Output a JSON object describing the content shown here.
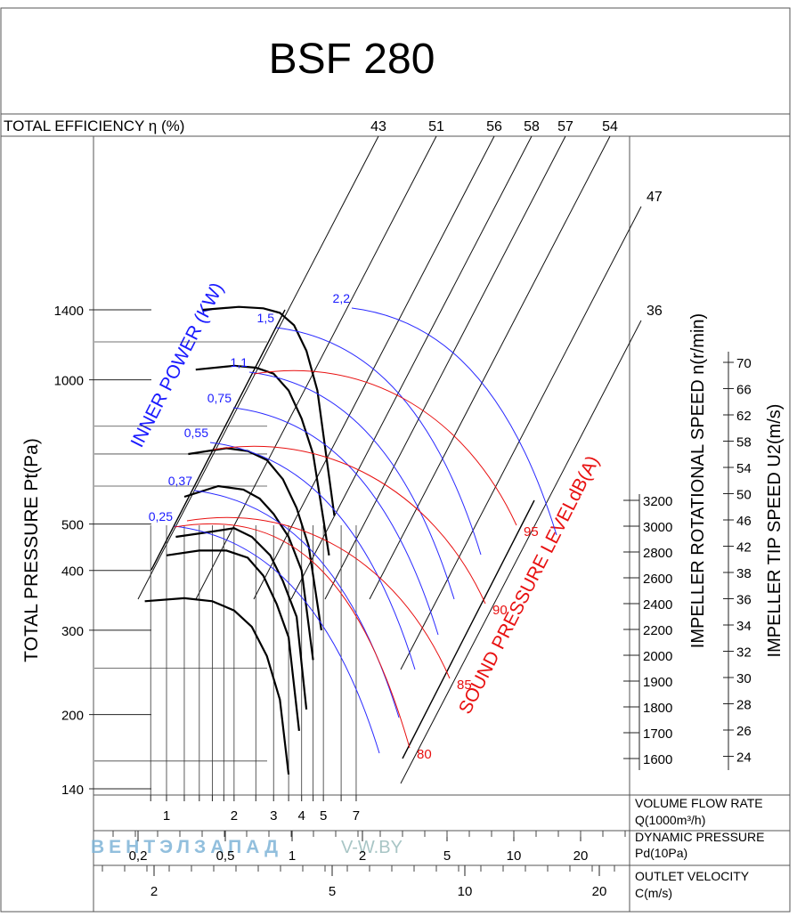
{
  "chart_data": {
    "type": "line",
    "title": "BSF 280",
    "efficiency_label": "TOTAL EFFICIENCY η (%)",
    "efficiency_values": [
      "43",
      "51",
      "56",
      "58",
      "57",
      "54",
      "47",
      "36"
    ],
    "ylabel": "TOTAL PRESSURE Pt(Pa)",
    "y_ticks": [
      "1400",
      "1000",
      "500",
      "400",
      "300",
      "200",
      "140"
    ],
    "inner_power_label": "INNER POWER (KW)",
    "inner_power_values": [
      "2,2",
      "1,5",
      "1,1",
      "0,75",
      "0,55",
      "0,37",
      "0,25"
    ],
    "sound_label": "SOUND PRESSURE LEVELdB(A)",
    "sound_values": [
      "95",
      "90",
      "85",
      "80"
    ],
    "speed_label": "IMPELLER ROTATIONAL SPEED n(r/min)",
    "speed_ticks": [
      "3200",
      "3000",
      "2800",
      "2600",
      "2400",
      "2200",
      "2000",
      "1900",
      "1800",
      "1700",
      "1600"
    ],
    "tip_label": "IMPELLER TIP SPEED U2(m/s)",
    "tip_ticks": [
      "70",
      "66",
      "62",
      "58",
      "54",
      "50",
      "46",
      "42",
      "38",
      "36",
      "34",
      "32",
      "30",
      "28",
      "26",
      "24"
    ],
    "flow_label": "VOLUME FLOW RATE",
    "flow_unit": "Q(1000m³/h)",
    "flow_ticks": [
      "1",
      "2",
      "3",
      "4",
      "5",
      "7"
    ],
    "dyn_label": "DYNAMIC PRESSURE",
    "dyn_unit": "Pd(10Pa)",
    "dyn_ticks": [
      "0,2",
      "0,5",
      "1",
      "2",
      "5",
      "10",
      "20"
    ],
    "vel_label": "OUTLET VELOCITY",
    "vel_unit": "C(m/s)",
    "vel_ticks": [
      "2",
      "5",
      "10",
      "20"
    ],
    "speeds": [
      {
        "rpm": 3200,
        "q": [
          1.45,
          2.1,
          2.7,
          3.2,
          3.7,
          4.2,
          4.7,
          5.6
        ],
        "pt": [
          1400,
          1420,
          1410,
          1380,
          1300,
          1150,
          950,
          520
        ]
      },
      {
        "rpm": 2800,
        "q": [
          1.35,
          2.0,
          2.5,
          3.0,
          3.5,
          4.0,
          4.5,
          5.3
        ],
        "pt": [
          1050,
          1070,
          1060,
          1030,
          950,
          830,
          700,
          430
        ]
      },
      {
        "rpm": 2400,
        "q": [
          1.25,
          1.85,
          2.3,
          2.8,
          3.3,
          3.8,
          4.3,
          4.9
        ],
        "pt": [
          700,
          720,
          710,
          680,
          620,
          540,
          450,
          300
        ]
      },
      {
        "rpm": 2200,
        "q": [
          1.2,
          1.7,
          2.2,
          2.6,
          3.0,
          3.5,
          4.0,
          4.5
        ],
        "pt": [
          570,
          600,
          590,
          565,
          525,
          470,
          400,
          260
        ]
      },
      {
        "rpm": 2000,
        "q": [
          1.1,
          1.5,
          2.0,
          2.4,
          2.9,
          3.3,
          3.8,
          4.2
        ],
        "pt": [
          470,
          480,
          490,
          470,
          430,
          380,
          320,
          205
        ]
      },
      {
        "rpm": 1900,
        "q": [
          1.0,
          1.4,
          1.85,
          2.3,
          2.7,
          3.1,
          3.5,
          3.9
        ],
        "pt": [
          430,
          440,
          440,
          425,
          390,
          340,
          290,
          185
        ]
      },
      {
        "rpm": 1600,
        "q": [
          0.8,
          1.2,
          1.6,
          2.0,
          2.4,
          2.8,
          3.2,
          3.5
        ],
        "pt": [
          345,
          350,
          345,
          330,
          305,
          265,
          215,
          150
        ]
      }
    ],
    "watermark_brand": "ВЕНТЭЛЗАПАД",
    "watermark_site": "V-W.BY"
  }
}
